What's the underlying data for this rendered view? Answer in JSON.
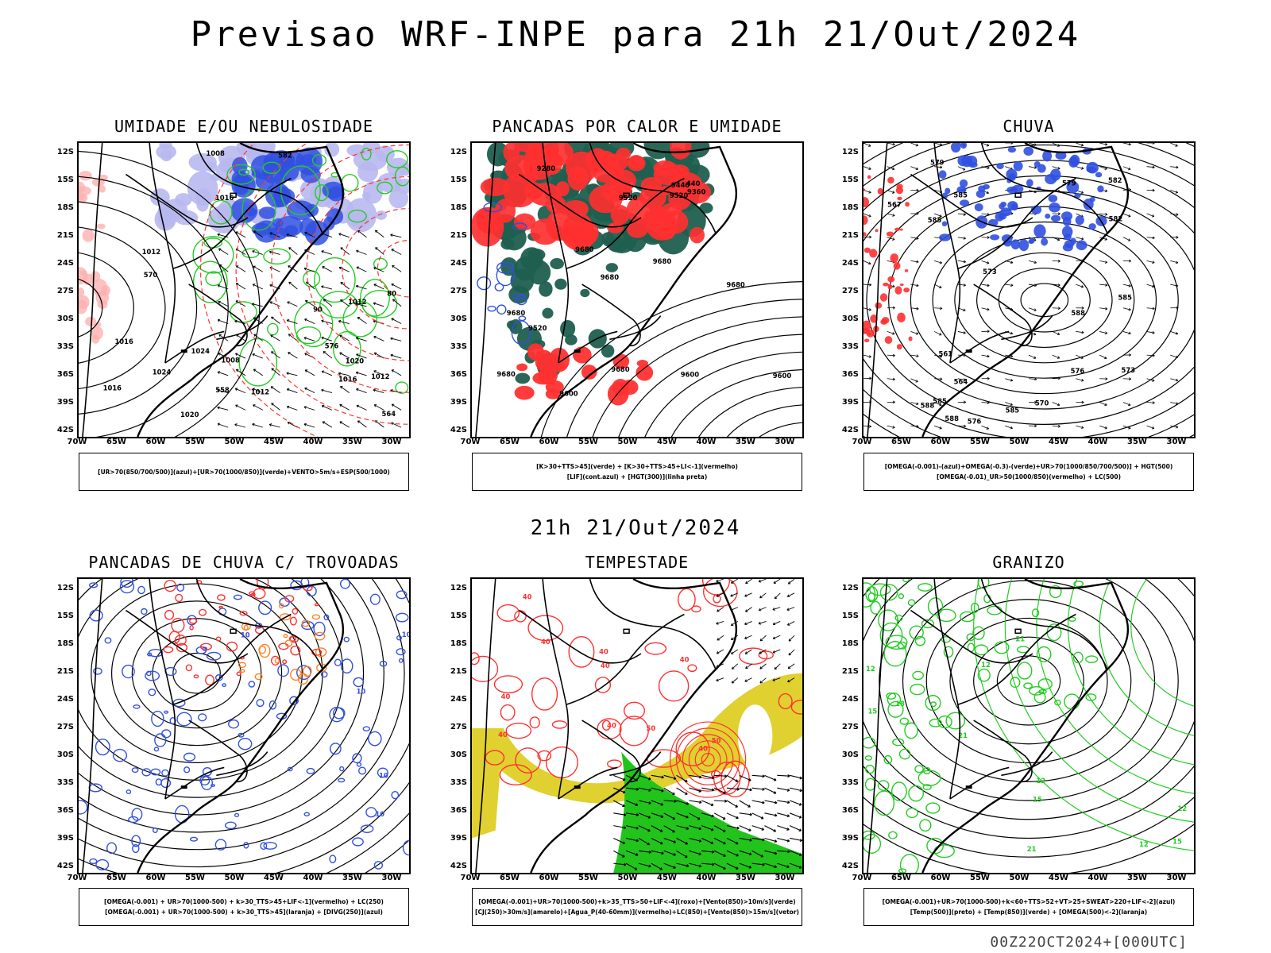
{
  "title": "Previsao WRF-INPE  para 21h 21/Out/2024",
  "subtitle": "21h 21/Out/2024",
  "footer": "00Z22OCT2024+[000UTC]",
  "axes": {
    "lat_labels": [
      "12S",
      "15S",
      "18S",
      "21S",
      "24S",
      "27S",
      "30S",
      "33S",
      "36S",
      "39S",
      "42S"
    ],
    "lon_labels": [
      "70W",
      "65W",
      "60W",
      "55W",
      "50W",
      "45W",
      "40W",
      "35W",
      "30W"
    ]
  },
  "colors": {
    "blue": "#3050e0",
    "lightblue": "#b8b8f0",
    "green": "#22cc22",
    "red": "#ff3030",
    "darkgreen": "#1f5f4f",
    "yellow": "#e0d030",
    "orange": "#ff8020"
  },
  "panels": [
    {
      "title": "UMIDADE E/OU NEBULOSIDADE",
      "legend": [
        "[UR>70(850/700/500)](azul)+[UR>70(1000/850)](verde)+VENTO>5m/s+ESP(500/1000)"
      ],
      "contour_labels": [
        "1012",
        "1008",
        "1016",
        "1020",
        "1024",
        "1016",
        "1012",
        "1012",
        "1016",
        "1020",
        "1024",
        "1008",
        "1012",
        "1016",
        "576",
        "570",
        "564",
        "558",
        "582",
        "80",
        "90"
      ]
    },
    {
      "title": "PANCADAS POR CALOR E UMIDADE",
      "legend": [
        "[K>30+TTS>45](verde) + [K>30+TTS>45+LI<-1](vermelho)",
        "[LIF](cont.azul) + [HGT(300)](linha preta)"
      ],
      "contour_labels": [
        "9680",
        "9680",
        "9680",
        "9680",
        "9600",
        "9680",
        "9520",
        "9600",
        "9680",
        "9680",
        "9520",
        "9600",
        "9520",
        "9360",
        "9440",
        "9280",
        "440"
      ]
    },
    {
      "title": "CHUVA",
      "legend": [
        "[OMEGA(-0.001)-(azul)+OMEGA(-0.3)-(verde)+UR>70(1000/850/700/500)] + HGT(500)",
        "[OMEGA(-0.01)_UR>50(1000/850)(vermelho) + LC(500)"
      ],
      "contour_labels": [
        "588",
        "588",
        "585",
        "585",
        "585",
        "582",
        "579",
        "585",
        "588",
        "585",
        "582",
        "579",
        "576",
        "573",
        "570",
        "567",
        "564",
        "561",
        "576",
        "573"
      ]
    },
    {
      "title": "PANCADAS DE CHUVA C/ TROVOADAS",
      "legend": [
        "[OMEGA(-0.001) + UR>70(1000-500) + k>30_TTS>45+LIF<-1](vermelho) + LC(250)",
        "[OMEGA(-0.001) + UR>70(1000-500) + k>30_TTS>45](laranja) + [DIVG(250)](azul)"
      ],
      "contour_labels": [
        "10",
        "10",
        "10",
        "10",
        "10"
      ]
    },
    {
      "title": "TEMPESTADE",
      "legend": [
        "[OMEGA(-0.001)+UR>70(1000-500)+k>35_TTS>50+LIF<-4](roxo)+[Vento(850)>10m/s](verde)",
        "[CJ(250)>30m/s](amarelo)+[Agua_P(40-60mm)](vermelho)+LC(850)+[Vento(850)>15m/s](vetor)"
      ],
      "contour_labels": [
        "50",
        "50",
        "40",
        "40",
        "40",
        "40",
        "40",
        "40",
        "40",
        "40",
        "40"
      ]
    },
    {
      "title": "GRANIZO",
      "legend": [
        "[OMEGA(-0.001)+UR>70(1000-500)+k<60+TTS>52+VT>25+SWEAT>220+LIF<-2](azul)",
        "[Temp(500)](preto) + [Temp(850)](verde) + [OMEGA(500)<-2](laranja)"
      ],
      "contour_labels": [
        "21",
        "21",
        "21",
        "18",
        "15",
        "15",
        "12",
        "12",
        "12",
        "12",
        "15",
        "12"
      ]
    }
  ]
}
